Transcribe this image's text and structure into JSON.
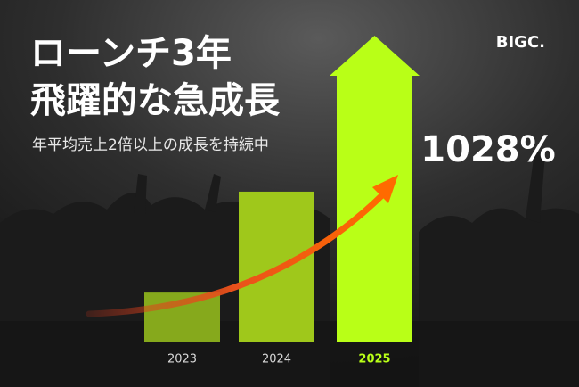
{
  "brand": "BIGC.",
  "chart_data": {
    "type": "bar",
    "title": [
      "ローンチ3年",
      "飛躍的な急成長"
    ],
    "subtitle": "年平均売上2倍以上の成長を持続中",
    "annotation": "1028%",
    "categories": [
      "2023",
      "2024",
      "2025"
    ],
    "values": [
      16,
      49,
      100
    ],
    "colors": [
      "#86a91c",
      "#9fc81b",
      "#b9ff17"
    ],
    "highlight_index": 2,
    "ylim": [
      0,
      100
    ]
  }
}
